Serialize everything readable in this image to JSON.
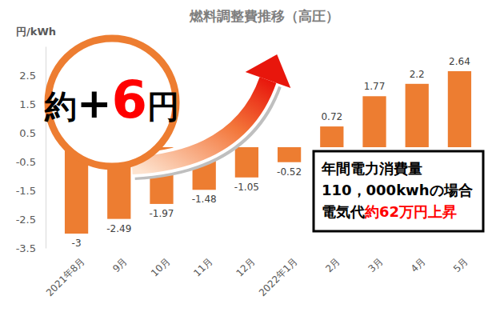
{
  "chart_data": {
    "type": "bar",
    "title": "燃料調整費推移（高圧）",
    "y_label": "円/kWh",
    "categories": [
      "2021年8月",
      "9月",
      "10月",
      "11月",
      "12月",
      "2022年1月",
      "2月",
      "3月",
      "4月",
      "5月"
    ],
    "values": [
      -3,
      -2.49,
      -1.97,
      -1.48,
      -1.05,
      -0.52,
      0.72,
      1.77,
      2.2,
      2.64
    ],
    "color": "#ED7D31",
    "ylim": [
      -3.5,
      3.5
    ],
    "yticks": [
      -3.5,
      -2.5,
      -1.5,
      -0.5,
      0.5,
      1.5,
      2.5
    ],
    "grid": false,
    "data_labels": true,
    "annotations": [
      [
        "約",
        "+",
        "6",
        "円"
      ],
      [
        "年間電力消費量"
      ],
      [
        "110，000kwhの場合"
      ],
      [
        "電気代",
        "約62万円上昇"
      ]
    ]
  }
}
